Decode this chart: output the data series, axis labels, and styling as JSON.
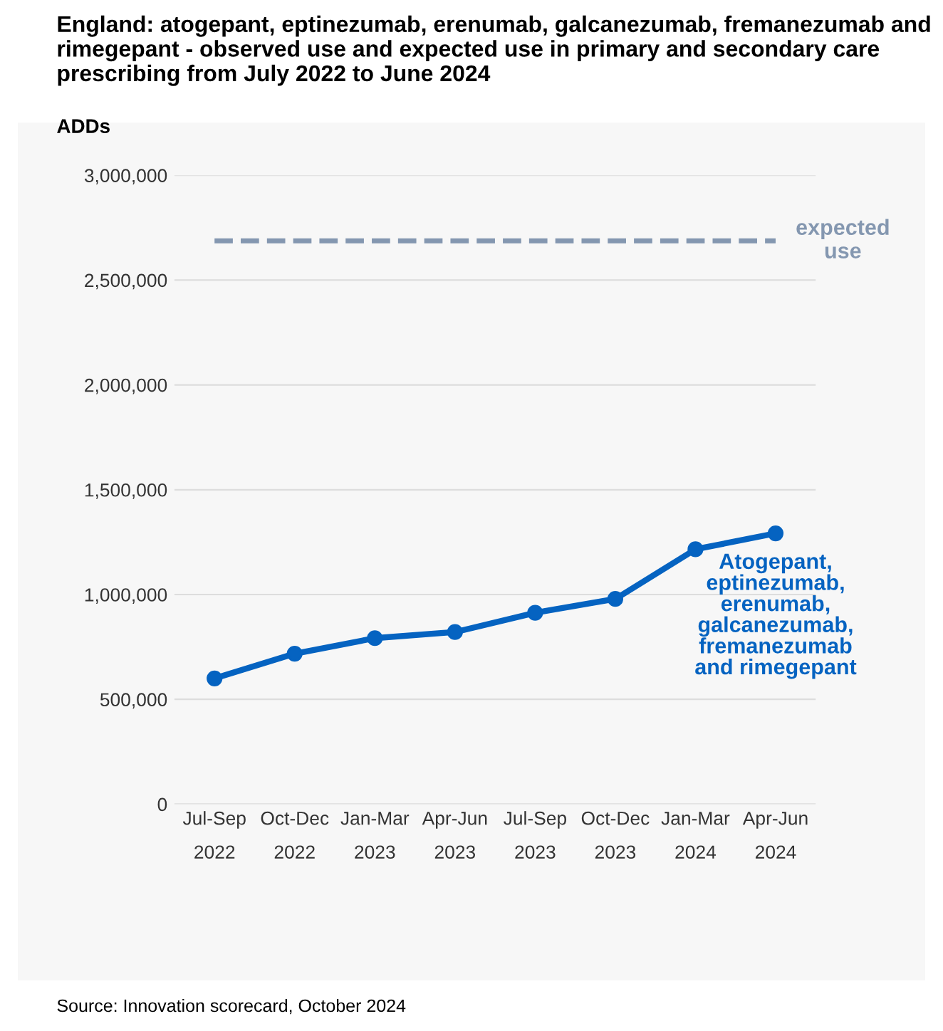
{
  "chart_data": {
    "type": "line",
    "title": "England: atogepant, eptinezumab, erenumab, galcanezumab, fremanezumab and rimegepant - observed use and expected use in primary and secondary care prescribing from July 2022 to June 2024",
    "ylabel": "ADDs",
    "categories": [
      "Jul-Sep\n2022",
      "Oct-Dec\n2022",
      "Jan-Mar\n2023",
      "Apr-Jun\n2023",
      "Jul-Sep\n2023",
      "Oct-Dec\n2023",
      "Jan-Mar\n2024",
      "Apr-Jun\n2024"
    ],
    "series": [
      {
        "name": "Atogepant,\neptinezumab,\nerenumab,\ngalcanezumab,\nfremanezumab\nand rimegepant",
        "color": "#0563c1",
        "values": [
          600000,
          718000,
          792000,
          821000,
          913000,
          979000,
          1216000,
          1292000
        ]
      }
    ],
    "ref_lines": [
      {
        "axis": "y",
        "value": 2687000,
        "label": "expected\nuse",
        "color": "#8497b0",
        "line_style": "dashed"
      }
    ],
    "ylim": [
      0,
      3000000
    ],
    "yticks": [
      {
        "value": 0,
        "label": "0"
      },
      {
        "value": 500000,
        "label": "500,000"
      },
      {
        "value": 1000000,
        "label": "1,000,000"
      },
      {
        "value": 1500000,
        "label": "1,500,000"
      },
      {
        "value": 2000000,
        "label": "2,000,000"
      },
      {
        "value": 2500000,
        "label": "2,500,000"
      },
      {
        "value": 3000000,
        "label": "3,000,000"
      }
    ],
    "grid": "y",
    "marker": "circle",
    "line_style": "solid",
    "legend": false,
    "annotations": [
      "Source: Innovation scorecard, October 2024"
    ]
  }
}
